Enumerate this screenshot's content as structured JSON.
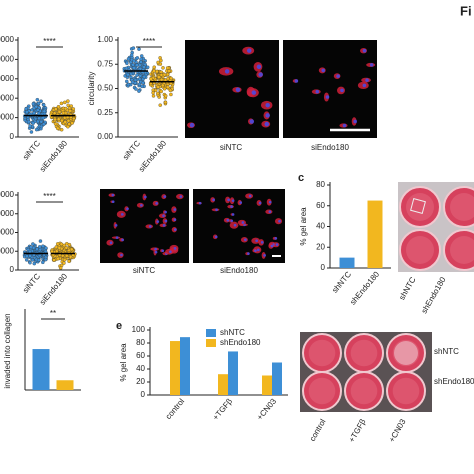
{
  "figure_label": "Fi",
  "panel_labels": [
    "c",
    "e"
  ],
  "micrographs": {
    "row1": [
      "siNTC",
      "siEndo180"
    ],
    "row2": [
      "siNTC",
      "siEndo180"
    ]
  },
  "wells_c": [
    "shNTC",
    "shEndo180"
  ],
  "wells_e": {
    "rows": [
      "shNTC",
      "shEndo180"
    ],
    "columns": [
      "control",
      "+TGFβ",
      "+CN03"
    ]
  },
  "chart_data": [
    {
      "type": "strip",
      "categories": [
        "siNTC",
        "siEndo180"
      ],
      "significance": "****",
      "ytick_labels": [
        "0000",
        "0000",
        "0000",
        "0000",
        "0000",
        "0"
      ],
      "colors": [
        "#3d8fd6",
        "#f2b71f"
      ]
    },
    {
      "type": "strip",
      "ylabel": "circularity",
      "categories": [
        "siNTC",
        "siEndo180"
      ],
      "significance": "****",
      "ylim": [
        0,
        1
      ],
      "yticks": [
        {
          "value": 0,
          "label": "0.00"
        },
        {
          "value": 0.25,
          "label": "0.25"
        },
        {
          "value": 0.5,
          "label": "0.50"
        },
        {
          "value": 0.75,
          "label": "0.75"
        },
        {
          "value": 1,
          "label": "1.00"
        }
      ],
      "medians": [
        0.68,
        0.57
      ],
      "colors": [
        "#3d8fd6",
        "#f2b71f"
      ]
    },
    {
      "type": "strip",
      "categories": [
        "siNTC",
        "siEndo180"
      ],
      "significance": "****",
      "ytick_labels": [
        "0000",
        "0000",
        "0000",
        "0000",
        "0"
      ],
      "colors": [
        "#3d8fd6",
        "#f2b71f"
      ]
    },
    {
      "type": "bar",
      "ylabel": "% gel area",
      "categories": [
        "shNTC",
        "shEndo180"
      ],
      "values": [
        10,
        65
      ],
      "ylim": [
        0,
        80
      ],
      "yticks": [
        0,
        20,
        40,
        60,
        80
      ],
      "colors": [
        "#3d8fd6",
        "#f2b71f"
      ]
    },
    {
      "type": "bar",
      "ylabel": "invaded into collagen",
      "significance": "**",
      "categories": [
        null,
        null
      ],
      "values": [
        21,
        5
      ],
      "ylim": [
        0,
        40
      ],
      "colors": [
        "#3d8fd6",
        "#f2b71f"
      ]
    },
    {
      "type": "grouped_bar",
      "ylabel": "% gel area",
      "categories": [
        "control",
        "+TGFβ",
        "+CN03"
      ],
      "series": [
        {
          "name": "shNTC",
          "color": "#3d8fd6",
          "values": [
            89,
            67,
            50
          ]
        },
        {
          "name": "shEndo180",
          "color": "#f2b71f",
          "values": [
            83,
            32,
            30
          ]
        }
      ],
      "ylim": [
        0,
        100
      ],
      "yticks": [
        0,
        20,
        40,
        60,
        80,
        100
      ]
    }
  ]
}
